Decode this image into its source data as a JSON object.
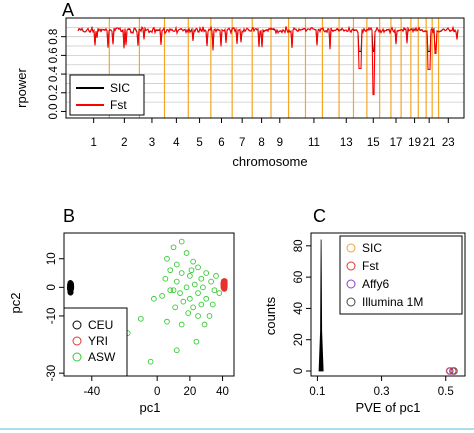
{
  "figure": {
    "panels": [
      "A",
      "B",
      "C"
    ]
  },
  "chart_data": [
    {
      "panel": "A",
      "type": "line",
      "xlabel": "chromosome",
      "ylabel": "rpower",
      "ylim": [
        0,
        1
      ],
      "y_ticks": [
        "0.0",
        "0.2",
        "0.4",
        "0.6",
        "0.8"
      ],
      "x_ticks": [
        "1",
        "2",
        "3",
        "4",
        "5",
        "6",
        "7",
        "8",
        "9",
        "11",
        "13",
        "15",
        "17",
        "19",
        "21",
        "23"
      ],
      "chromosome_boundaries": 22,
      "grid": "horizontal gray lines at 0.1 spacing (0.1–0.9)",
      "series": [
        {
          "name": "SIC",
          "color": "#000000",
          "typical_value": 0.87,
          "values_range": [
            0.64,
            0.97
          ]
        },
        {
          "name": "Fst",
          "color": "#ff0000",
          "typical_value": 0.87,
          "values_range": [
            0.18,
            0.95
          ]
        }
      ],
      "dips": [
        {
          "chromosome": "15",
          "value": 0.18
        },
        {
          "chromosome": "14",
          "value": 0.46
        },
        {
          "chromosome": "21",
          "value": 0.45
        },
        {
          "chromosome": "22",
          "value": 0.62
        }
      ],
      "boundary_color": "#f5a623",
      "legend_placement": "left"
    },
    {
      "panel": "B",
      "type": "scatter",
      "xlabel": "pc1",
      "ylabel": "pc2",
      "x_ticks": [
        "-40",
        "0",
        "20",
        "40"
      ],
      "y_ticks": [
        "10",
        "0",
        "-10",
        "-30"
      ],
      "xlim": [
        -57,
        47
      ],
      "ylim": [
        -31,
        19
      ],
      "legend_placement": "bottom-left",
      "series": [
        {
          "name": "CEU",
          "color": "#000000",
          "center": [
            -53,
            0
          ],
          "spread": [
            0.7,
            1.2
          ],
          "n": 60
        },
        {
          "name": "YRI",
          "color": "#e8322d",
          "center": [
            41,
            1
          ],
          "spread": [
            0.7,
            1.0
          ],
          "n": 60
        },
        {
          "name": "ASW",
          "color": "#33cc33",
          "points": [
            [
              15,
              16
            ],
            [
              10,
              14
            ],
            [
              18,
              12
            ],
            [
              6,
              10
            ],
            [
              22,
              9
            ],
            [
              12,
              8
            ],
            [
              25,
              7
            ],
            [
              8,
              6
            ],
            [
              30,
              5
            ],
            [
              15,
              5
            ],
            [
              20,
              4
            ],
            [
              27,
              3
            ],
            [
              5,
              3
            ],
            [
              33,
              2
            ],
            [
              12,
              2
            ],
            [
              23,
              1
            ],
            [
              18,
              0
            ],
            [
              28,
              0
            ],
            [
              10,
              -1
            ],
            [
              35,
              -1
            ],
            [
              14,
              -2
            ],
            [
              25,
              -2
            ],
            [
              3,
              -3
            ],
            [
              20,
              -4
            ],
            [
              30,
              -4
            ],
            [
              -2,
              -4
            ],
            [
              16,
              -5
            ],
            [
              27,
              -6
            ],
            [
              22,
              -7
            ],
            [
              11,
              -7
            ],
            [
              34,
              -6
            ],
            [
              19,
              -9
            ],
            [
              25,
              -10
            ],
            [
              -10,
              -11
            ],
            [
              6,
              -12
            ],
            [
              29,
              -13
            ],
            [
              15,
              -13
            ],
            [
              -18,
              -16
            ],
            [
              38,
              -2
            ],
            [
              32,
              -10
            ],
            [
              12,
              -22
            ],
            [
              -4,
              -26
            ],
            [
              24,
              -19
            ],
            [
              8,
              -1
            ],
            [
              36,
              4
            ],
            [
              21,
              6
            ]
          ]
        }
      ]
    },
    {
      "panel": "C",
      "type": "histogram",
      "xlabel": "PVE of pc1",
      "ylabel": "counts",
      "x_ticks": [
        "0.1",
        "0.3",
        "0.5"
      ],
      "y_ticks": [
        "0",
        "20",
        "40",
        "60",
        "80"
      ],
      "xlim": [
        0.08,
        0.56
      ],
      "ylim": [
        0,
        85
      ],
      "spike": {
        "x_from": 0.105,
        "x_to": 0.118,
        "peak": 84
      },
      "markers": [
        {
          "x": 0.511,
          "y": 0,
          "color": "#f2a33a"
        },
        {
          "x": 0.513,
          "y": 0,
          "color": "#8d3bd6"
        },
        {
          "x": 0.522,
          "y": 0,
          "color": "#e8322d"
        },
        {
          "x": 0.526,
          "y": 0,
          "color": "#555555"
        }
      ],
      "legend_placement": "top-right",
      "series": [
        {
          "name": "SIC",
          "color": "#f2a33a"
        },
        {
          "name": "Fst",
          "color": "#e8322d"
        },
        {
          "name": "Affy6",
          "color": "#8d3bd6"
        },
        {
          "name": "Illumina 1M",
          "color": "#444444"
        }
      ]
    }
  ]
}
